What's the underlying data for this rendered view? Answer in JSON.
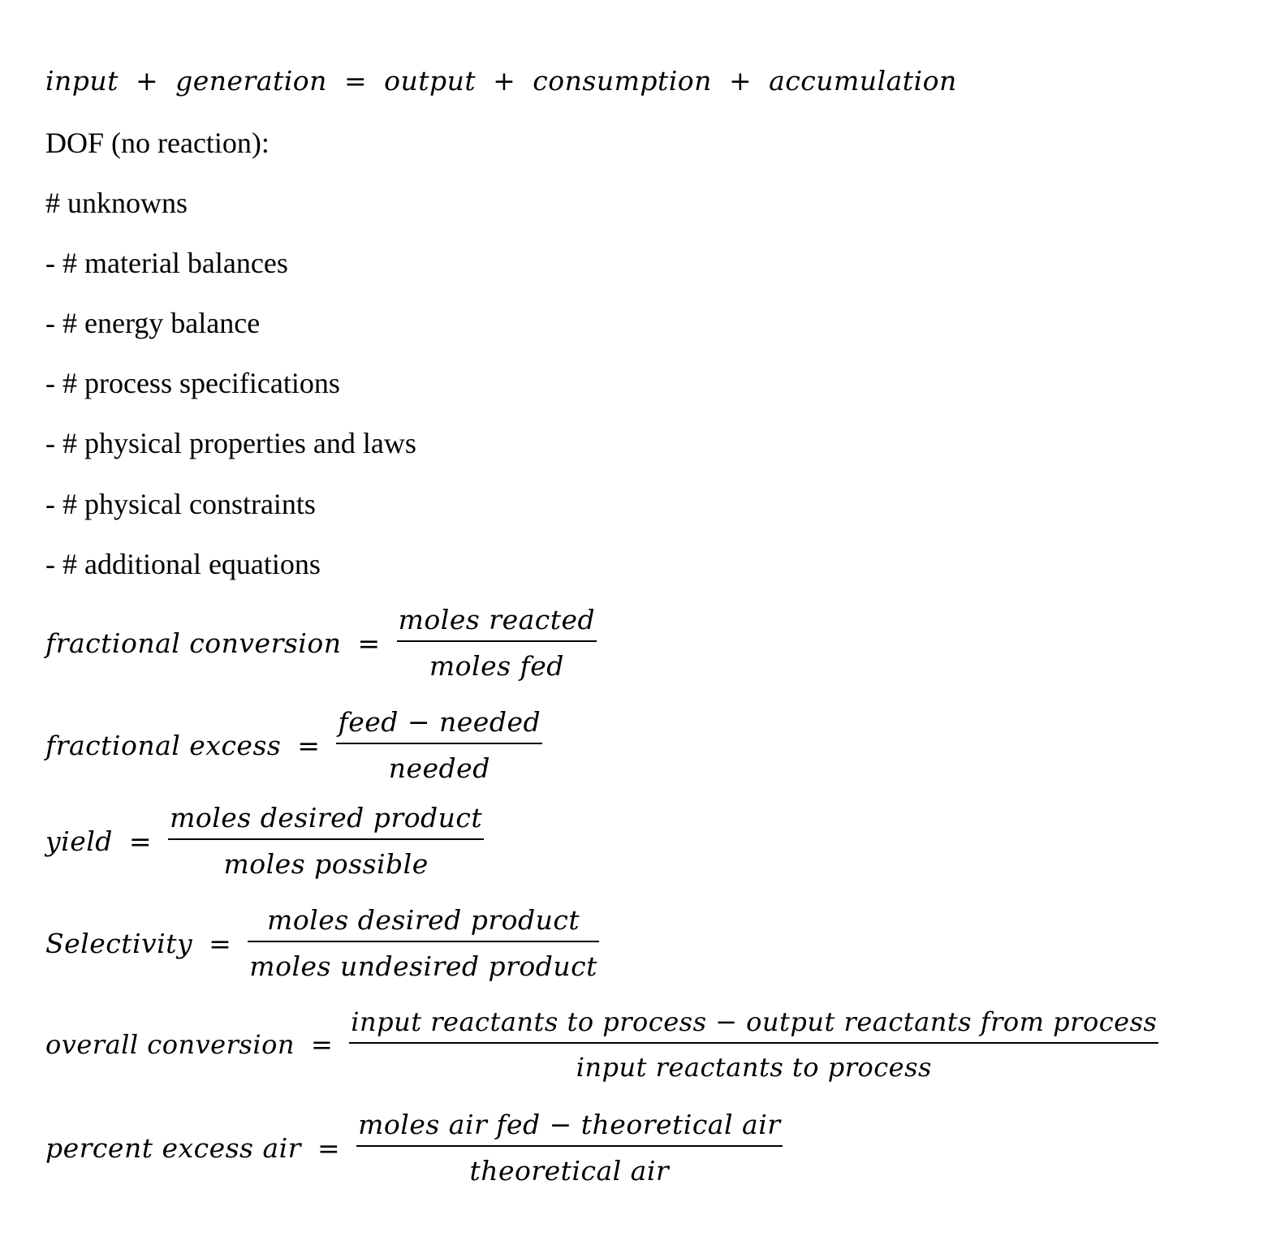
{
  "balance_equation": {
    "input": "input",
    "generation": "generation",
    "output": "output",
    "consumption": "consumption",
    "accumulation": "accumulation",
    "plus": "+",
    "equals": "="
  },
  "dof": {
    "heading": "DOF (no reaction):",
    "items": [
      "# unknowns",
      "- # material balances",
      "- # energy balance",
      "- # process specifications",
      "- # physical properties and laws",
      "- # physical constraints",
      "- # additional equations"
    ]
  },
  "formulas": [
    {
      "lhs": "fractional conversion",
      "numerator": "moles reacted",
      "denominator": "moles fed"
    },
    {
      "lhs": "fractional excess",
      "numerator": "feed − needed",
      "denominator": "needed"
    },
    {
      "lhs": "yield",
      "numerator": "moles desired product",
      "denominator": "moles possible"
    },
    {
      "lhs": "Selectivity",
      "numerator": "moles desired product",
      "denominator": "moles undesired product"
    },
    {
      "lhs": "overall conversion",
      "numerator": "input reactants to process − output reactants from process",
      "denominator": "input reactants to process"
    },
    {
      "lhs": "percent excess air",
      "numerator": "moles air fed − theoretical air",
      "denominator": "theoretical air"
    }
  ],
  "equals_sign": "="
}
